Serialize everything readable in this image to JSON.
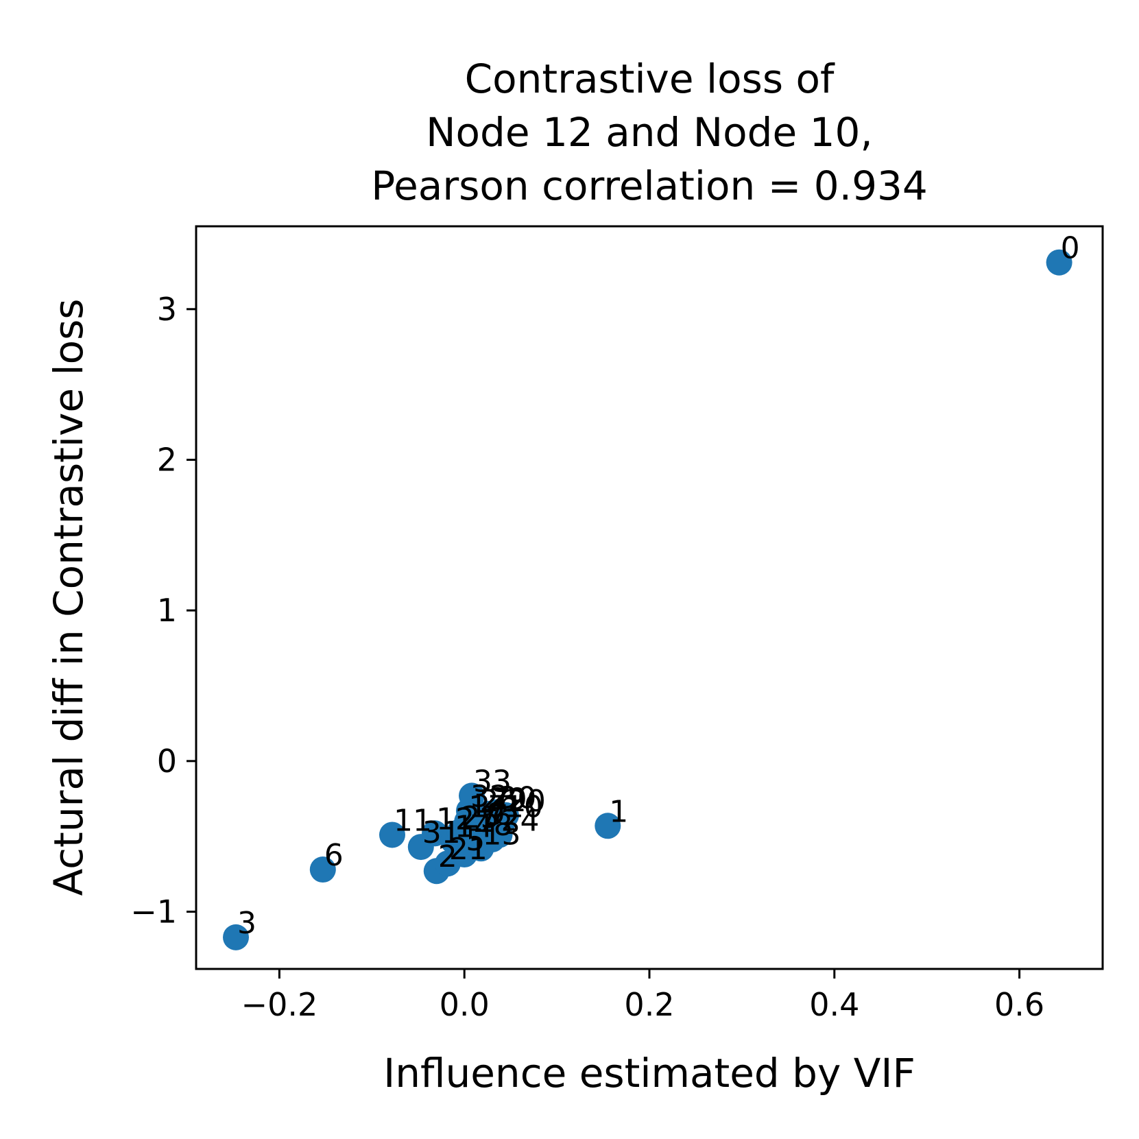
{
  "chart_data": {
    "type": "scatter",
    "title_lines": [
      "Contrastive loss of",
      "Node 12 and Node 10,",
      "Pearson correlation = 0.934"
    ],
    "xlabel": "Influence estimated by VIF",
    "ylabel": "Actural diff in Contrastive loss",
    "xlim": [
      -0.29,
      0.69
    ],
    "ylim": [
      -1.38,
      3.55
    ],
    "xticks": [
      {
        "value": -0.2,
        "label": "−0.2"
      },
      {
        "value": 0.0,
        "label": "0.0"
      },
      {
        "value": 0.2,
        "label": "0.2"
      },
      {
        "value": 0.4,
        "label": "0.4"
      },
      {
        "value": 0.6,
        "label": "0.6"
      }
    ],
    "yticks": [
      {
        "value": -1,
        "label": "−1"
      },
      {
        "value": 0,
        "label": "0"
      },
      {
        "value": 1,
        "label": "1"
      },
      {
        "value": 2,
        "label": "2"
      },
      {
        "value": 3,
        "label": "3"
      }
    ],
    "color": "#1f77b4",
    "points": [
      {
        "label": "0",
        "x": 0.643,
        "y": 3.31
      },
      {
        "label": "1",
        "x": 0.155,
        "y": -0.43
      },
      {
        "label": "3",
        "x": -0.247,
        "y": -1.17
      },
      {
        "label": "6",
        "x": -0.153,
        "y": -0.72
      },
      {
        "label": "11",
        "x": -0.078,
        "y": -0.49
      },
      {
        "label": "31",
        "x": -0.047,
        "y": -0.57
      },
      {
        "label": "12",
        "x": -0.032,
        "y": -0.48
      },
      {
        "label": "2",
        "x": -0.03,
        "y": -0.73
      },
      {
        "label": "21",
        "x": -0.018,
        "y": -0.68
      },
      {
        "label": "14",
        "x": -0.012,
        "y": -0.53
      },
      {
        "label": "25",
        "x": -0.005,
        "y": -0.47
      },
      {
        "label": "5",
        "x": 0.0,
        "y": -0.62
      },
      {
        "label": "17",
        "x": 0.003,
        "y": -0.4
      },
      {
        "label": "32",
        "x": 0.005,
        "y": -0.33
      },
      {
        "label": "33",
        "x": 0.008,
        "y": -0.23
      },
      {
        "label": "7",
        "x": 0.012,
        "y": -0.5
      },
      {
        "label": "26",
        "x": 0.015,
        "y": -0.36
      },
      {
        "label": "13",
        "x": 0.018,
        "y": -0.58
      },
      {
        "label": "9",
        "x": 0.022,
        "y": -0.45
      },
      {
        "label": "29",
        "x": 0.025,
        "y": -0.35
      },
      {
        "label": "8",
        "x": 0.03,
        "y": -0.52
      },
      {
        "label": "30",
        "x": 0.035,
        "y": -0.34
      },
      {
        "label": "24",
        "x": 0.038,
        "y": -0.49
      },
      {
        "label": "10",
        "x": 0.042,
        "y": -0.4
      },
      {
        "label": "20",
        "x": 0.045,
        "y": -0.36
      }
    ]
  }
}
